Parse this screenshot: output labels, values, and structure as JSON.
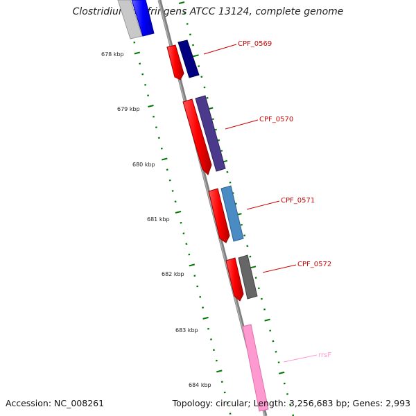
{
  "title": "Clostridium perfringens ATCC 13124, complete genome",
  "footer": {
    "accession": "Accession: NC_008261",
    "topology": "Topology: circular; Length: 3,256,683 bp; Genes: 2,993"
  },
  "ruler": {
    "labels": [
      "678 kbp",
      "679 kbp",
      "680 kbp",
      "681 kbp",
      "682 kbp",
      "683 kbp",
      "684 kbp"
    ]
  },
  "genes": [
    {
      "name": "CPF_0569",
      "label_color": "#cc0000",
      "feature_color": "#000080"
    },
    {
      "name": "CPF_0570",
      "label_color": "#cc0000",
      "feature_color": "#4b3a8c"
    },
    {
      "name": "CPF_0571",
      "label_color": "#cc0000",
      "feature_color": "#4a8bc4"
    },
    {
      "name": "CPF_0572",
      "label_color": "#cc0000",
      "feature_color": "#666666"
    },
    {
      "name": "rrsF",
      "label_color": "#ff9ad0",
      "feature_color": "#ff9ad0"
    }
  ],
  "colors": {
    "cds": "#ff0000",
    "backbone": "#808080",
    "ruler": "#007700",
    "top_feature": "#0000ff"
  }
}
